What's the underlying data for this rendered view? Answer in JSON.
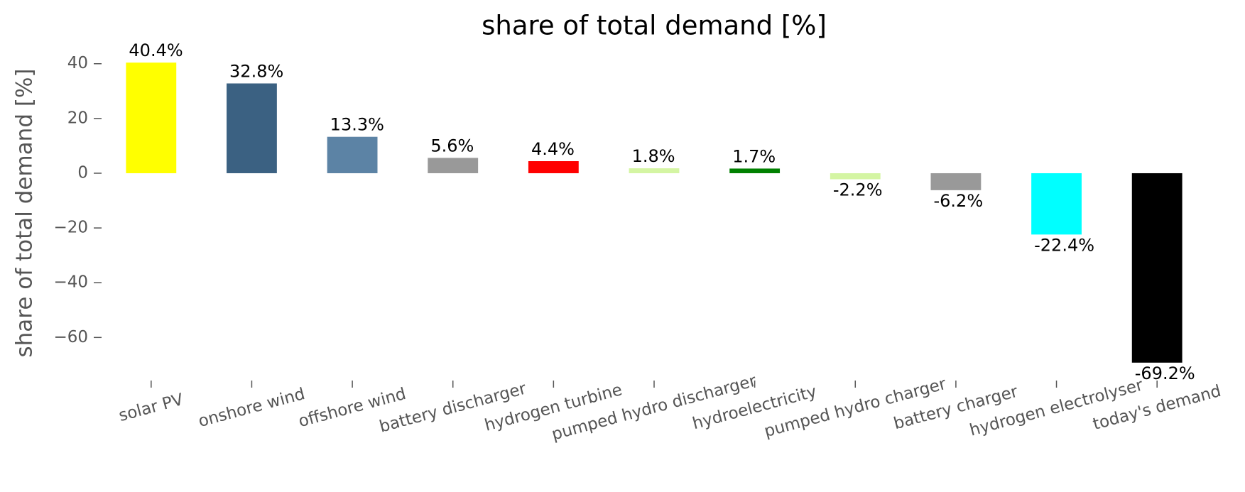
{
  "chart_data": {
    "type": "bar",
    "title": "share of total demand [%]",
    "y_label": "share of total demand [%]",
    "categories": [
      "solar PV",
      "onshore wind",
      "offshore wind",
      "battery discharger",
      "hydrogen turbine",
      "pumped hydro discharger",
      "hydroelectricity",
      "pumped hydro charger",
      "battery charger",
      "hydrogen electrolyser",
      "today's demand"
    ],
    "values": [
      40.4,
      32.8,
      13.3,
      5.6,
      4.4,
      1.8,
      1.7,
      -2.2,
      -6.2,
      -22.4,
      -69.2
    ],
    "value_labels": [
      "40.4%",
      "32.8%",
      "13.3%",
      "5.6%",
      "4.4%",
      "1.8%",
      "1.7%",
      "-2.2%",
      "-6.2%",
      "-22.4%",
      "-69.2%"
    ],
    "colors": [
      "#ffff00",
      "#3b6182",
      "#5c83a5",
      "#999999",
      "#ff0000",
      "#d4f5a3",
      "#008000",
      "#d4f5a3",
      "#999999",
      "#00ffff",
      "#000000"
    ],
    "ylim": [
      -74.7,
      45.9
    ],
    "yticks": [
      {
        "value": -60,
        "label": "−60"
      },
      {
        "value": -40,
        "label": "−40"
      },
      {
        "value": -20,
        "label": "−20"
      },
      0,
      20,
      40
    ]
  }
}
